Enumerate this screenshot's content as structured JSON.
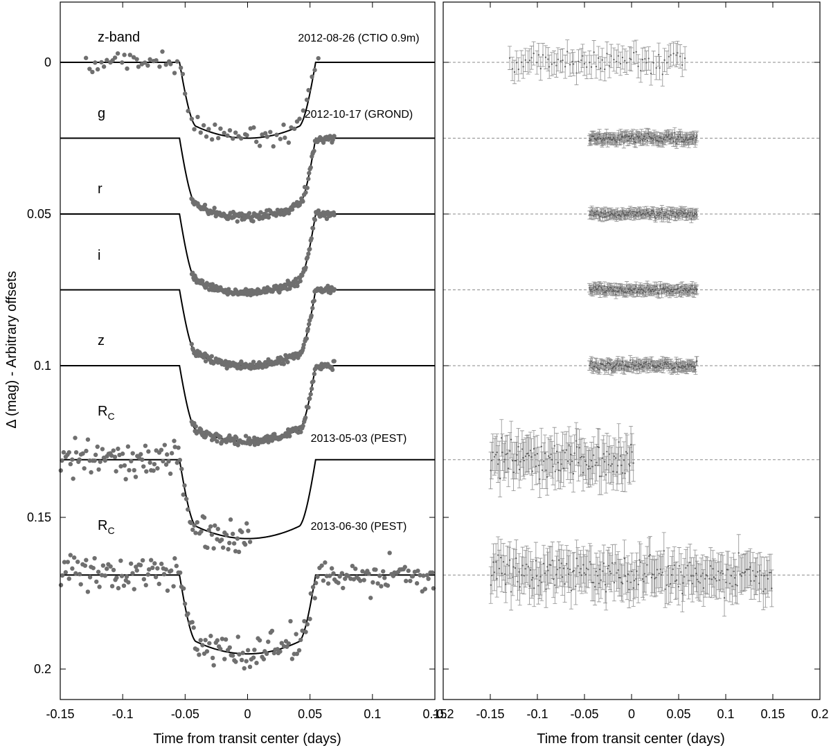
{
  "chart_data": [
    {
      "type": "scatter",
      "panel": "light curves",
      "xlabel": "Time from transit center (days)",
      "ylabel": "Δ (mag) - Arbitrary offsets",
      "xlim": [
        -0.15,
        0.15
      ],
      "ylim": [
        0.21,
        -0.02
      ],
      "x_ticks": [
        -0.15,
        -0.1,
        -0.05,
        0,
        0.05,
        0.1,
        0.15
      ],
      "x_tick_labels": [
        "-0.15",
        "-0.1",
        "-0.05",
        "0",
        "0.05",
        "0.1",
        "0.15"
      ],
      "y_ticks": [
        0,
        0.05,
        0.1,
        0.15,
        0.2
      ],
      "y_tick_labels": [
        "0",
        "0.05",
        "0.1",
        "0.15",
        "0.2"
      ],
      "grid": false,
      "series": [
        {
          "name": "z-band",
          "sub": "",
          "annotation": "2012-08-26 (CTIO 0.9m)",
          "offset": 0.0,
          "t_min": -0.13,
          "t_max": 0.058,
          "n_points": 80,
          "scatter": 0.0035,
          "depth": 0.025
        },
        {
          "name": "g",
          "sub": "",
          "annotation": "2012-10-17 (GROND)",
          "offset": 0.025,
          "t_min": -0.045,
          "t_max": 0.07,
          "n_points": 170,
          "scatter": 0.0015,
          "depth": 0.026
        },
        {
          "name": "r",
          "sub": "",
          "annotation": "",
          "offset": 0.05,
          "t_min": -0.045,
          "t_max": 0.07,
          "n_points": 170,
          "scatter": 0.0012,
          "depth": 0.026
        },
        {
          "name": "i",
          "sub": "",
          "annotation": "",
          "offset": 0.075,
          "t_min": -0.045,
          "t_max": 0.07,
          "n_points": 170,
          "scatter": 0.0013,
          "depth": 0.025
        },
        {
          "name": "z",
          "sub": "",
          "annotation": "",
          "offset": 0.1,
          "t_min": -0.045,
          "t_max": 0.07,
          "n_points": 170,
          "scatter": 0.0014,
          "depth": 0.025
        },
        {
          "name": "R",
          "sub": "C",
          "annotation": "2013-05-03 (PEST)",
          "offset": 0.131,
          "t_min": -0.15,
          "t_max": 0.003,
          "n_points": 120,
          "scatter": 0.0055,
          "depth": 0.026
        },
        {
          "name": "R",
          "sub": "C",
          "annotation": "2013-06-30 (PEST)",
          "offset": 0.169,
          "t_min": -0.15,
          "t_max": 0.15,
          "n_points": 220,
          "scatter": 0.0055,
          "depth": 0.026
        }
      ]
    },
    {
      "type": "scatter",
      "panel": "residuals",
      "xlabel": "Time from transit center (days)",
      "ylabel": "",
      "xlim": [
        -0.2,
        0.2
      ],
      "x_ticks": [
        -0.2,
        -0.15,
        -0.1,
        -0.05,
        0,
        0.05,
        0.1,
        0.15,
        0.2
      ],
      "x_tick_labels": [
        "-0.2",
        "-0.15",
        "-0.1",
        "-0.05",
        "0",
        "0.05",
        "0.1",
        "0.15",
        "0.2"
      ],
      "error_bars": true,
      "zero_lines": "dashed"
    }
  ],
  "colors": {
    "points": "#6f6f6f",
    "model": "#000000",
    "residual": "#8c8c8c",
    "zero_line": "#8a8a8a",
    "frame": "#000000"
  }
}
